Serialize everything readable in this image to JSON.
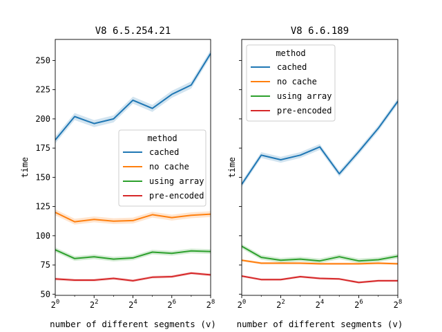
{
  "chart_data": [
    {
      "type": "line",
      "title": "V8 6.5.254.21",
      "xlabel": "number of different segments (v)",
      "ylabel": "time",
      "xscale": "log2",
      "xlim": [
        1,
        256
      ],
      "ylim": [
        49,
        268
      ],
      "x": [
        1,
        2,
        4,
        8,
        16,
        32,
        64,
        128,
        256
      ],
      "xticks": [
        "0",
        "2",
        "4",
        "6",
        "8"
      ],
      "xtick_base": "2",
      "yticks": [
        "50",
        "75",
        "100",
        "125",
        "150",
        "175",
        "200",
        "225",
        "250"
      ],
      "yticks_shown": true,
      "legend": {
        "title": "method",
        "placement": "center-right"
      },
      "grid": false,
      "series": [
        {
          "name": "cached",
          "color": "#1f77b4",
          "values": [
            182,
            202,
            196,
            200,
            216,
            209,
            221,
            229,
            256
          ],
          "band": 3
        },
        {
          "name": "no cache",
          "color": "#ff7f0e",
          "values": [
            120,
            112,
            114,
            112.5,
            113,
            118,
            115.5,
            117.5,
            118.5
          ],
          "band": 2.5
        },
        {
          "name": "using array",
          "color": "#2ca02c",
          "values": [
            88,
            80.5,
            82,
            80,
            81,
            86,
            85,
            87,
            86.5
          ],
          "band": 2
        },
        {
          "name": "pre-encoded",
          "color": "#d62728",
          "values": [
            63,
            62,
            62,
            63.5,
            61.5,
            64.5,
            65,
            68,
            66.5
          ],
          "band": 1.2
        }
      ]
    },
    {
      "type": "line",
      "title": "V8 6.6.189",
      "xlabel": "number of different segments (v)",
      "ylabel": "time",
      "xscale": "log2",
      "xlim": [
        1,
        256
      ],
      "ylim": [
        49,
        268
      ],
      "x": [
        1,
        2,
        4,
        8,
        16,
        32,
        64,
        128,
        256
      ],
      "xticks": [
        "0",
        "2",
        "4",
        "6",
        "8"
      ],
      "xtick_base": "2",
      "yticks": [
        "50",
        "75",
        "100",
        "125",
        "150",
        "175",
        "200",
        "225",
        "250"
      ],
      "yticks_shown": false,
      "legend": {
        "title": "method",
        "placement": "top-left"
      },
      "grid": false,
      "series": [
        {
          "name": "cached",
          "color": "#1f77b4",
          "values": [
            144,
            169,
            165,
            169,
            176,
            153,
            172,
            192,
            215
          ],
          "band": 2.5
        },
        {
          "name": "no cache",
          "color": "#ff7f0e",
          "values": [
            79,
            76.5,
            76.5,
            76.5,
            76,
            76,
            76,
            76.5,
            76
          ],
          "band": 1
        },
        {
          "name": "using array",
          "color": "#2ca02c",
          "values": [
            91,
            81.5,
            79,
            80,
            78.5,
            82,
            78.5,
            79.5,
            82.5
          ],
          "band": 2
        },
        {
          "name": "pre-encoded",
          "color": "#d62728",
          "values": [
            65.5,
            62.5,
            62.5,
            65,
            63.5,
            63,
            60,
            61.5,
            61.5
          ],
          "band": 1
        }
      ]
    }
  ]
}
